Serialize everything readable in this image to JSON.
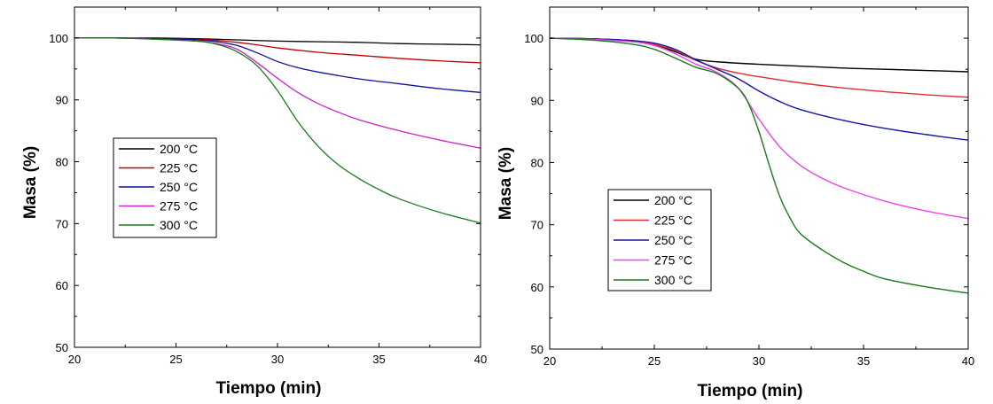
{
  "chart_data": [
    {
      "type": "line",
      "title": "",
      "xlabel": "Tiempo (min)",
      "ylabel": "Masa (%)",
      "xlim": [
        20,
        40
      ],
      "ylim": [
        50,
        105
      ],
      "xticks": [
        20,
        25,
        30,
        35,
        40
      ],
      "yticks": [
        50,
        60,
        70,
        80,
        90,
        100
      ],
      "grid": false,
      "legend_position": "middle-left",
      "series": [
        {
          "name": "200 °C",
          "color": "#000000",
          "x": [
            20,
            22,
            24,
            26,
            28,
            30,
            32,
            34,
            36,
            38,
            40
          ],
          "y": [
            100,
            100,
            100,
            99.9,
            99.7,
            99.5,
            99.4,
            99.3,
            99.1,
            99.0,
            98.9
          ]
        },
        {
          "name": "225 °C",
          "color": "#c00000",
          "x": [
            20,
            22,
            24,
            26,
            27,
            28,
            29,
            30,
            32,
            34,
            36,
            38,
            40
          ],
          "y": [
            100,
            100,
            99.9,
            99.8,
            99.6,
            99.3,
            98.9,
            98.4,
            97.7,
            97.2,
            96.7,
            96.3,
            96.0
          ]
        },
        {
          "name": "250 °C",
          "color": "#1010a0",
          "x": [
            20,
            22,
            24,
            26,
            27,
            28,
            29,
            30,
            31,
            32,
            34,
            36,
            38,
            40
          ],
          "y": [
            100,
            100,
            99.9,
            99.7,
            99.4,
            98.8,
            97.6,
            96.2,
            95.2,
            94.5,
            93.4,
            92.6,
            91.8,
            91.2
          ]
        },
        {
          "name": "275 °C",
          "color": "#cc20cc",
          "x": [
            20,
            22,
            24,
            26,
            27,
            28,
            29,
            30,
            31,
            32,
            33,
            34,
            36,
            38,
            40
          ],
          "y": [
            100,
            100,
            99.8,
            99.5,
            99.1,
            98.2,
            96.0,
            93.5,
            91.2,
            89.4,
            88.0,
            86.8,
            85.0,
            83.5,
            82.2
          ]
        },
        {
          "name": "300 °C",
          "color": "#1a7a1a",
          "x": [
            20,
            22,
            24,
            26,
            27,
            28,
            29,
            30,
            31,
            32,
            33,
            34,
            35,
            36,
            38,
            40
          ],
          "y": [
            100,
            100,
            99.8,
            99.5,
            99.0,
            97.8,
            95.5,
            91.5,
            86.5,
            82.5,
            79.5,
            77.3,
            75.5,
            74.0,
            71.8,
            70.1
          ]
        }
      ]
    },
    {
      "type": "line",
      "title": "",
      "xlabel": "Tiempo (min)",
      "ylabel": "Masa (%)",
      "xlim": [
        20,
        40
      ],
      "ylim": [
        50,
        105
      ],
      "xticks": [
        20,
        25,
        30,
        35,
        40
      ],
      "yticks": [
        50,
        60,
        70,
        80,
        90,
        100
      ],
      "grid": false,
      "legend_position": "bottom-left",
      "series": [
        {
          "name": "200 °C",
          "color": "#000000",
          "x": [
            20,
            22,
            24,
            25,
            26,
            27,
            28,
            30,
            32,
            34,
            36,
            38,
            40
          ],
          "y": [
            100,
            99.9,
            99.6,
            99.0,
            97.8,
            96.6,
            96.2,
            95.8,
            95.5,
            95.2,
            95.0,
            94.8,
            94.6
          ]
        },
        {
          "name": "225 °C",
          "color": "#dd3030",
          "x": [
            20,
            22,
            24,
            25,
            26,
            27,
            28,
            29,
            30,
            32,
            34,
            36,
            38,
            40
          ],
          "y": [
            100,
            99.9,
            99.5,
            99.0,
            98.0,
            96.4,
            95.2,
            94.4,
            93.8,
            92.8,
            92.0,
            91.4,
            90.9,
            90.5
          ]
        },
        {
          "name": "250 °C",
          "color": "#1515a5",
          "x": [
            20,
            22,
            24,
            25,
            26,
            27,
            28,
            29,
            30,
            31,
            32,
            34,
            36,
            38,
            40
          ],
          "y": [
            100,
            99.9,
            99.6,
            99.2,
            98.2,
            96.5,
            95.0,
            93.5,
            91.5,
            89.8,
            88.5,
            86.8,
            85.5,
            84.5,
            83.6
          ]
        },
        {
          "name": "275 °C",
          "color": "#ee44ee",
          "x": [
            20,
            22,
            24,
            25,
            26,
            27,
            28,
            29,
            30,
            31,
            32,
            33,
            34,
            36,
            38,
            40
          ],
          "y": [
            100,
            99.8,
            99.4,
            98.8,
            97.5,
            95.8,
            94.5,
            92.0,
            87.0,
            82.5,
            79.5,
            77.5,
            76.0,
            73.8,
            72.2,
            71.0
          ]
        },
        {
          "name": "300 °C",
          "color": "#1a7a1a",
          "x": [
            20,
            22,
            24,
            25,
            26,
            27,
            28,
            29,
            29.5,
            30,
            30.5,
            31,
            31.5,
            32,
            33,
            34,
            35,
            36,
            38,
            40
          ],
          "y": [
            100,
            99.7,
            99.0,
            98.2,
            96.8,
            95.3,
            94.3,
            92.0,
            89.5,
            85.0,
            79.5,
            74.5,
            71.0,
            68.5,
            66.0,
            64.0,
            62.5,
            61.3,
            60.0,
            59.0
          ]
        }
      ]
    }
  ]
}
